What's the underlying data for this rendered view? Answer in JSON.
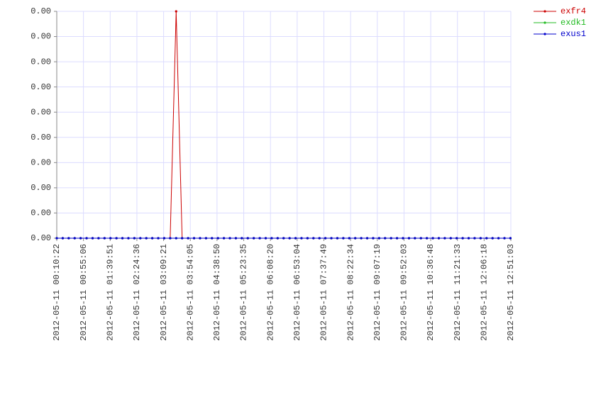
{
  "chart_data": {
    "type": "line",
    "x": [
      "2012-05-11 00:10:22",
      "2012-05-11 00:20:22",
      "2012-05-11 00:30:22",
      "2012-05-11 00:40:22",
      "2012-05-11 00:50:22",
      "2012-05-11 01:00:22",
      "2012-05-11 01:10:22",
      "2012-05-11 01:20:22",
      "2012-05-11 01:30:22",
      "2012-05-11 01:40:22",
      "2012-05-11 01:50:22",
      "2012-05-11 02:00:22",
      "2012-05-11 02:10:22",
      "2012-05-11 02:20:22",
      "2012-05-11 02:30:22",
      "2012-05-11 02:40:22",
      "2012-05-11 02:50:22",
      "2012-05-11 03:00:22",
      "2012-05-11 03:10:22",
      "2012-05-11 03:20:22",
      "2012-05-11 03:30:22",
      "2012-05-11 03:40:22",
      "2012-05-11 03:50:22",
      "2012-05-11 04:00:22",
      "2012-05-11 04:10:22",
      "2012-05-11 04:20:22",
      "2012-05-11 04:30:22",
      "2012-05-11 04:40:22",
      "2012-05-11 04:50:22",
      "2012-05-11 05:00:22",
      "2012-05-11 05:10:22",
      "2012-05-11 05:20:22",
      "2012-05-11 05:30:22",
      "2012-05-11 05:40:22",
      "2012-05-11 05:50:22",
      "2012-05-11 06:00:22",
      "2012-05-11 06:10:22",
      "2012-05-11 06:20:22",
      "2012-05-11 06:30:22",
      "2012-05-11 06:40:22",
      "2012-05-11 06:50:22",
      "2012-05-11 07:00:22",
      "2012-05-11 07:10:22",
      "2012-05-11 07:20:22",
      "2012-05-11 07:30:22",
      "2012-05-11 07:40:22",
      "2012-05-11 07:50:22",
      "2012-05-11 08:00:22",
      "2012-05-11 08:10:22",
      "2012-05-11 08:20:22",
      "2012-05-11 08:30:22",
      "2012-05-11 08:40:22",
      "2012-05-11 08:50:22",
      "2012-05-11 09:00:22",
      "2012-05-11 09:10:22",
      "2012-05-11 09:20:22",
      "2012-05-11 09:30:22",
      "2012-05-11 09:40:22",
      "2012-05-11 09:50:22",
      "2012-05-11 10:00:22",
      "2012-05-11 10:10:22",
      "2012-05-11 10:20:22",
      "2012-05-11 10:30:22",
      "2012-05-11 10:40:22",
      "2012-05-11 10:50:22",
      "2012-05-11 11:00:22",
      "2012-05-11 11:10:22",
      "2012-05-11 11:20:22",
      "2012-05-11 11:30:22",
      "2012-05-11 11:40:22",
      "2012-05-11 11:50:22",
      "2012-05-11 12:00:22",
      "2012-05-11 12:10:22",
      "2012-05-11 12:20:22",
      "2012-05-11 12:30:22",
      "2012-05-11 12:40:22",
      "2012-05-11 12:50:22"
    ],
    "series": [
      {
        "name": "exfr4",
        "color": "#cc0000",
        "values": [
          0,
          0,
          0,
          0,
          0,
          0,
          0,
          0,
          0,
          0,
          0,
          0,
          0,
          0,
          0,
          0,
          0,
          0,
          0,
          0,
          0.0009,
          0,
          0,
          0,
          0,
          0,
          0,
          0,
          0,
          0,
          0,
          0,
          0,
          0,
          0,
          0,
          0,
          0,
          0,
          0,
          0,
          0,
          0,
          0,
          0,
          0,
          0,
          0,
          0,
          0,
          0,
          0,
          0,
          0,
          0,
          0,
          0,
          0,
          0,
          0,
          0,
          0,
          0,
          0,
          0,
          0,
          0,
          0,
          0,
          0,
          0,
          0,
          0,
          0,
          0,
          0,
          0
        ]
      },
      {
        "name": "exdk1",
        "color": "#22bb22",
        "values": [
          0,
          0,
          0,
          0,
          0,
          0,
          0,
          0,
          0,
          0,
          0,
          0,
          0,
          0,
          0,
          0,
          0,
          0,
          0,
          0,
          0,
          0,
          0,
          0,
          0,
          0,
          0,
          0,
          0,
          0,
          0,
          0,
          0,
          0,
          0,
          0,
          0,
          0,
          0,
          0,
          0,
          0,
          0,
          0,
          0,
          0,
          0,
          0,
          0,
          0,
          0,
          0,
          0,
          0,
          0,
          0,
          0,
          0,
          0,
          0,
          0,
          0,
          0,
          0,
          0,
          0,
          0,
          0,
          0,
          0,
          0,
          0,
          0,
          0,
          0,
          0,
          0
        ]
      },
      {
        "name": "exus1",
        "color": "#0000cc",
        "values": [
          0,
          0,
          0,
          0,
          0,
          0,
          0,
          0,
          0,
          0,
          0,
          0,
          0,
          0,
          0,
          0,
          0,
          0,
          0,
          0,
          0,
          0,
          0,
          0,
          0,
          0,
          0,
          0,
          0,
          0,
          0,
          0,
          0,
          0,
          0,
          0,
          0,
          0,
          0,
          0,
          0,
          0,
          0,
          0,
          0,
          0,
          0,
          0,
          0,
          0,
          0,
          0,
          0,
          0,
          0,
          0,
          0,
          0,
          0,
          0,
          0,
          0,
          0,
          0,
          0,
          0,
          0,
          0,
          0,
          0,
          0,
          0,
          0,
          0,
          0,
          0,
          0
        ]
      }
    ],
    "xlim": [
      "2012-05-11 00:10:22",
      "2012-05-11 12:51:03"
    ],
    "xticks": [
      "2012-05-11 00:10:22",
      "2012-05-11 00:55:06",
      "2012-05-11 01:39:51",
      "2012-05-11 02:24:36",
      "2012-05-11 03:09:21",
      "2012-05-11 03:54:05",
      "2012-05-11 04:38:50",
      "2012-05-11 05:23:35",
      "2012-05-11 06:08:20",
      "2012-05-11 06:53:04",
      "2012-05-11 07:37:49",
      "2012-05-11 08:22:34",
      "2012-05-11 09:07:19",
      "2012-05-11 09:52:03",
      "2012-05-11 10:36:48",
      "2012-05-11 11:21:33",
      "2012-05-11 12:06:18",
      "2012-05-11 12:51:03"
    ],
    "ylim": [
      0,
      0.0009
    ],
    "yticks": [
      {
        "value": 0,
        "label": "0.00"
      },
      {
        "value": 0.0001,
        "label": "0.00"
      },
      {
        "value": 0.0002,
        "label": "0.00"
      },
      {
        "value": 0.0003,
        "label": "0.00"
      },
      {
        "value": 0.0004,
        "label": "0.00"
      },
      {
        "value": 0.0005,
        "label": "0.00"
      },
      {
        "value": 0.0006,
        "label": "0.00"
      },
      {
        "value": 0.0007,
        "label": "0.00"
      },
      {
        "value": 0.0008,
        "label": "0.00"
      },
      {
        "value": 0.0009,
        "label": "0.00"
      }
    ],
    "grid": true,
    "legend": "top-right"
  }
}
